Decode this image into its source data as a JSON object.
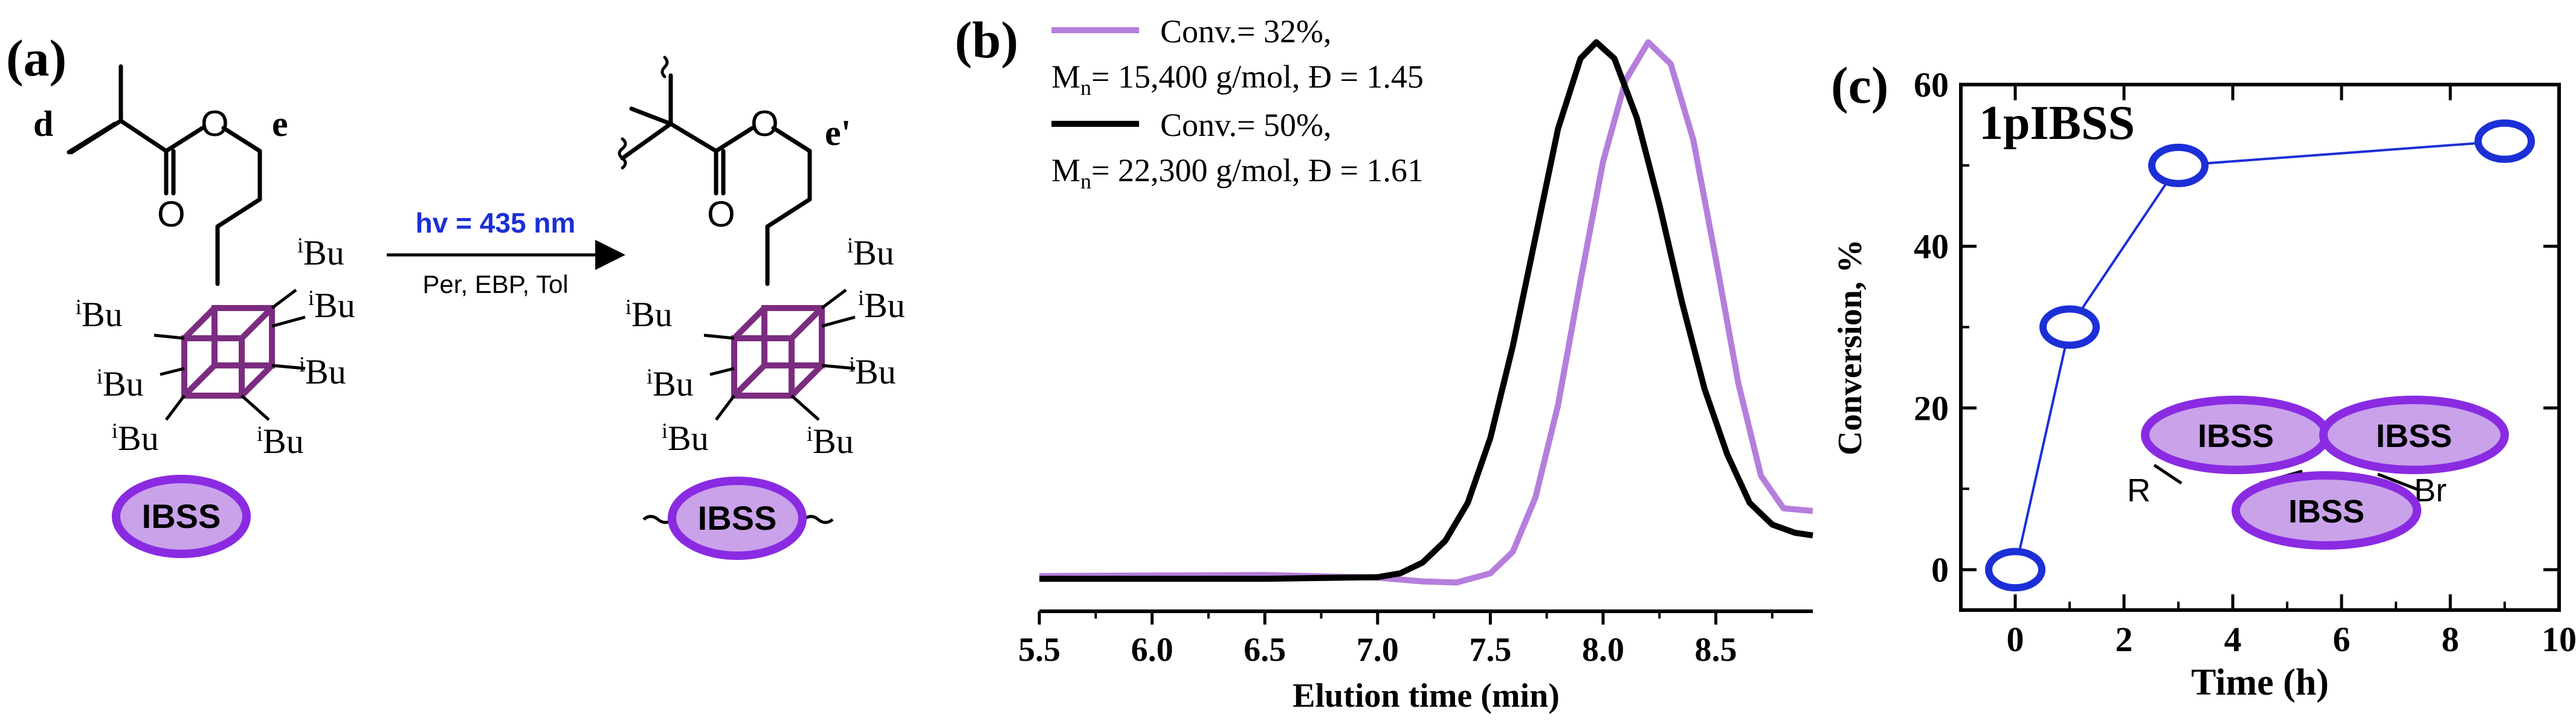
{
  "scheme": {
    "panel_label": "(a)",
    "label_d": "d",
    "label_e": "e",
    "label_e_prime": "e'",
    "atom_O": "O",
    "iBu_prefix": "i",
    "iBu_suffix": "Bu",
    "logo_text": "IBSS",
    "arrow_top": "hv = 435 nm",
    "arrow_bottom": "Per, EBP, Tol",
    "colors": {
      "cage": "#7b2c80",
      "oval_fill": "#c9a2ea",
      "oval_stroke": "#8a2be2",
      "hv": "#1c2fd6"
    }
  },
  "chart_data": [
    {
      "id": "b",
      "panel_label": "(b)",
      "type": "line",
      "xlabel": "Elution time (min)",
      "ylabel": "",
      "xlim": [
        5.5,
        8.93
      ],
      "ylim": [
        -0.05,
        1.05
      ],
      "xticks": [
        "5.5",
        "6.0",
        "6.5",
        "7.0",
        "7.5",
        "8.0",
        "8.5"
      ],
      "legend": [
        {
          "line1": "Conv.= 32%,",
          "mn_prefix": "M",
          "mn_sub": "n",
          "line2": "= 15,400 g/mol, Đ = 1.45"
        },
        {
          "line1": "Conv.= 50%,",
          "mn_prefix": "M",
          "mn_sub": "n",
          "line2": "= 22,300 g/mol, Đ = 1.61"
        }
      ],
      "series": [
        {
          "name": "Conv.= 32%",
          "color": "#b57edc",
          "baseline": 0.015,
          "tail": 0.135,
          "x": [
            5.5,
            6.5,
            7.0,
            7.2,
            7.35,
            7.5,
            7.6,
            7.7,
            7.8,
            7.9,
            8.0,
            8.1,
            8.2,
            8.3,
            8.4,
            8.5,
            8.6,
            8.7,
            8.8,
            8.93
          ],
          "y": [
            0.015,
            0.017,
            0.012,
            0.005,
            0.003,
            0.02,
            0.06,
            0.16,
            0.33,
            0.56,
            0.78,
            0.93,
            1.0,
            0.96,
            0.82,
            0.6,
            0.37,
            0.2,
            0.14,
            0.135
          ]
        },
        {
          "name": "Conv.= 50%",
          "color": "#000000",
          "baseline": 0.01,
          "tail": 0.09,
          "x": [
            5.5,
            6.5,
            7.0,
            7.1,
            7.2,
            7.3,
            7.4,
            7.5,
            7.6,
            7.7,
            7.8,
            7.9,
            7.97,
            8.05,
            8.15,
            8.25,
            8.35,
            8.45,
            8.55,
            8.65,
            8.75,
            8.85,
            8.93
          ],
          "y": [
            0.01,
            0.01,
            0.013,
            0.02,
            0.04,
            0.08,
            0.15,
            0.27,
            0.44,
            0.64,
            0.84,
            0.97,
            1.0,
            0.97,
            0.86,
            0.7,
            0.52,
            0.36,
            0.24,
            0.15,
            0.11,
            0.095,
            0.09
          ]
        }
      ]
    },
    {
      "id": "c",
      "panel_label": "(c)",
      "type": "scatter",
      "title": "1pIBSS",
      "xlabel": "Time (h)",
      "ylabel": "Conversion, %",
      "xlim": [
        -1,
        10
      ],
      "ylim": [
        -5,
        60
      ],
      "xticks": [
        0,
        2,
        4,
        6,
        8,
        10
      ],
      "yticks": [
        0,
        20,
        40,
        60
      ],
      "series": [
        {
          "name": "1pIBSS",
          "color": "#1c2fd6",
          "x": [
            0,
            1,
            3,
            9
          ],
          "y": [
            0,
            30,
            50,
            53
          ]
        }
      ],
      "inset": {
        "oval_label": "IBSS",
        "end_left": "R",
        "end_right": "Br"
      }
    }
  ]
}
